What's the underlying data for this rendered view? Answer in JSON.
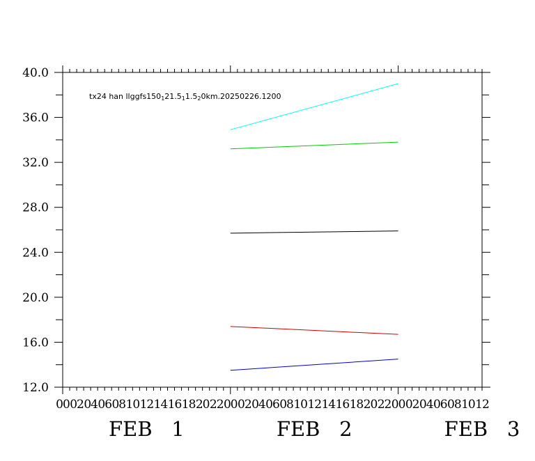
{
  "chart_data": {
    "type": "line",
    "title": "tx24 han llggfs150_1 21.5_1 1.5_2 0km.20250226.1200",
    "title_parts": [
      {
        "text": "tx24 han llggfs150",
        "sub": false
      },
      {
        "text": "1",
        "sub": true
      },
      {
        "text": "21.5",
        "sub": false
      },
      {
        "text": "1",
        "sub": true
      },
      {
        "text": "1.5",
        "sub": false
      },
      {
        "text": "2",
        "sub": true
      },
      {
        "text": "0km.20250226.1200",
        "sub": false
      }
    ],
    "xlabel": "",
    "ylabel": "",
    "ylim": [
      12.0,
      40.0
    ],
    "y_ticks": [
      "12.0",
      "16.0",
      "20.0",
      "24.0",
      "28.0",
      "32.0",
      "36.0",
      "40.0"
    ],
    "x_range_hours": [
      0,
      60
    ],
    "x_hour_labels": [
      "00",
      "02",
      "04",
      "06",
      "08",
      "10",
      "12",
      "14",
      "16",
      "18",
      "20",
      "22",
      "00",
      "02",
      "04",
      "06",
      "08",
      "10",
      "12",
      "14",
      "16",
      "18",
      "20",
      "22",
      "00",
      "02",
      "04",
      "06",
      "08",
      "10",
      "12"
    ],
    "x_date_labels": [
      {
        "text": "FEB 1",
        "hour": 12
      },
      {
        "text": "FEB 2",
        "hour": 36
      },
      {
        "text": "FEB 3",
        "hour": 60
      }
    ],
    "grid": false,
    "series": [
      {
        "color": "#00ffff",
        "x": [
          24,
          48
        ],
        "y": [
          34.9,
          39.0
        ]
      },
      {
        "color": "#00cc00",
        "x": [
          24,
          48
        ],
        "y": [
          33.2,
          33.8
        ]
      },
      {
        "color": "#000000",
        "x": [
          24,
          48
        ],
        "y": [
          25.7,
          25.9
        ]
      },
      {
        "color": "#cc0000",
        "x": [
          24,
          48
        ],
        "y": [
          17.4,
          16.7
        ]
      },
      {
        "color": "#0000cc",
        "x": [
          24,
          48
        ],
        "y": [
          13.5,
          14.5
        ]
      }
    ]
  }
}
